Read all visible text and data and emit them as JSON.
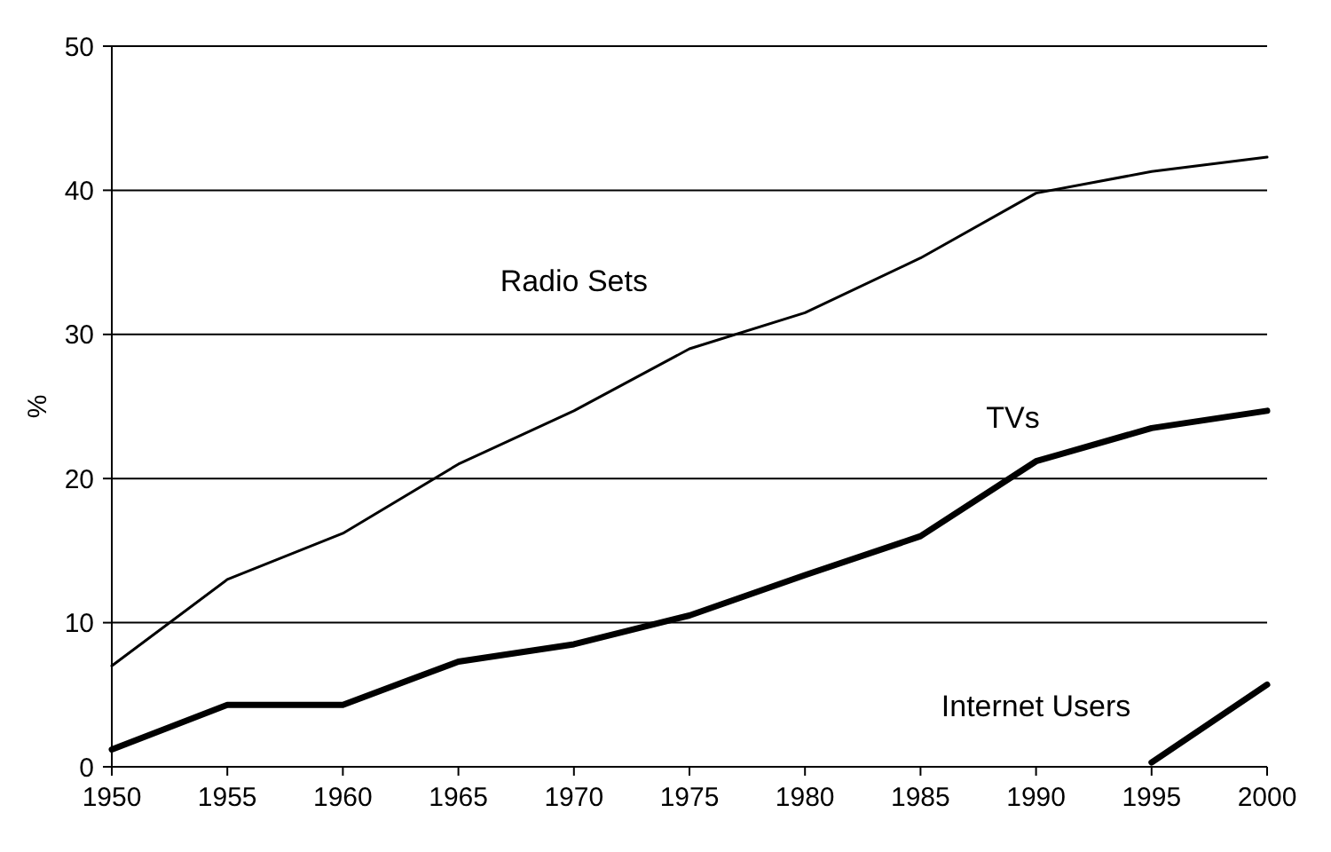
{
  "chart_data": {
    "type": "line",
    "ylabel": "%",
    "x": [
      1950,
      1955,
      1960,
      1965,
      1970,
      1975,
      1980,
      1985,
      1990,
      1995,
      2000
    ],
    "xlim": [
      1950,
      2000
    ],
    "xticks": [
      1950,
      1955,
      1960,
      1965,
      1970,
      1975,
      1980,
      1985,
      1990,
      1995,
      2000
    ],
    "ylim": [
      0,
      50
    ],
    "yticks": [
      0,
      10,
      20,
      30,
      40,
      50
    ],
    "grid": "y",
    "series": [
      {
        "name": "Radio Sets",
        "color": "#000000",
        "values": [
          7,
          13,
          16.2,
          21,
          24.7,
          29,
          31.5,
          35.3,
          39.8,
          41.3,
          42.3
        ]
      },
      {
        "name": "TVs",
        "color": "#000000",
        "values": [
          1.2,
          4.3,
          4.3,
          7.3,
          8.5,
          10.5,
          13.3,
          16,
          21.2,
          23.5,
          24.7
        ]
      },
      {
        "name": "Internet Users",
        "color": "#000000",
        "values": [
          null,
          null,
          null,
          null,
          null,
          null,
          null,
          null,
          null,
          0.3,
          5.7
        ]
      }
    ]
  }
}
